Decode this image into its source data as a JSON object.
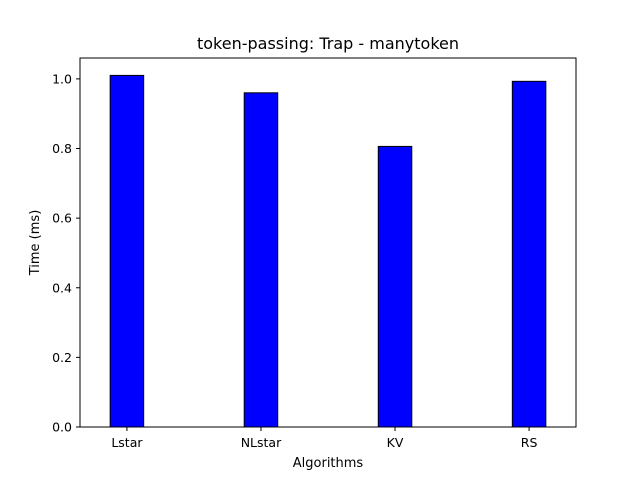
{
  "chart_data": {
    "type": "bar",
    "title": "token-passing: Trap - manytoken",
    "xlabel": "Algorithms",
    "ylabel": "Time (ms)",
    "categories": [
      "Lstar",
      "NLstar",
      "KV",
      "RS"
    ],
    "values": [
      1.01,
      0.96,
      0.806,
      0.993
    ],
    "ylim": [
      0,
      1.06
    ],
    "yticks": [
      0.0,
      0.2,
      0.4,
      0.6,
      0.8,
      1.0
    ],
    "ytick_labels": [
      "0.0",
      "0.2",
      "0.4",
      "0.6",
      "0.8",
      "1.0"
    ],
    "grid": false,
    "legend": "none",
    "colors": {
      "bar_fill": "#0000ff",
      "bar_edge": "#000000",
      "axis": "#000000"
    }
  }
}
